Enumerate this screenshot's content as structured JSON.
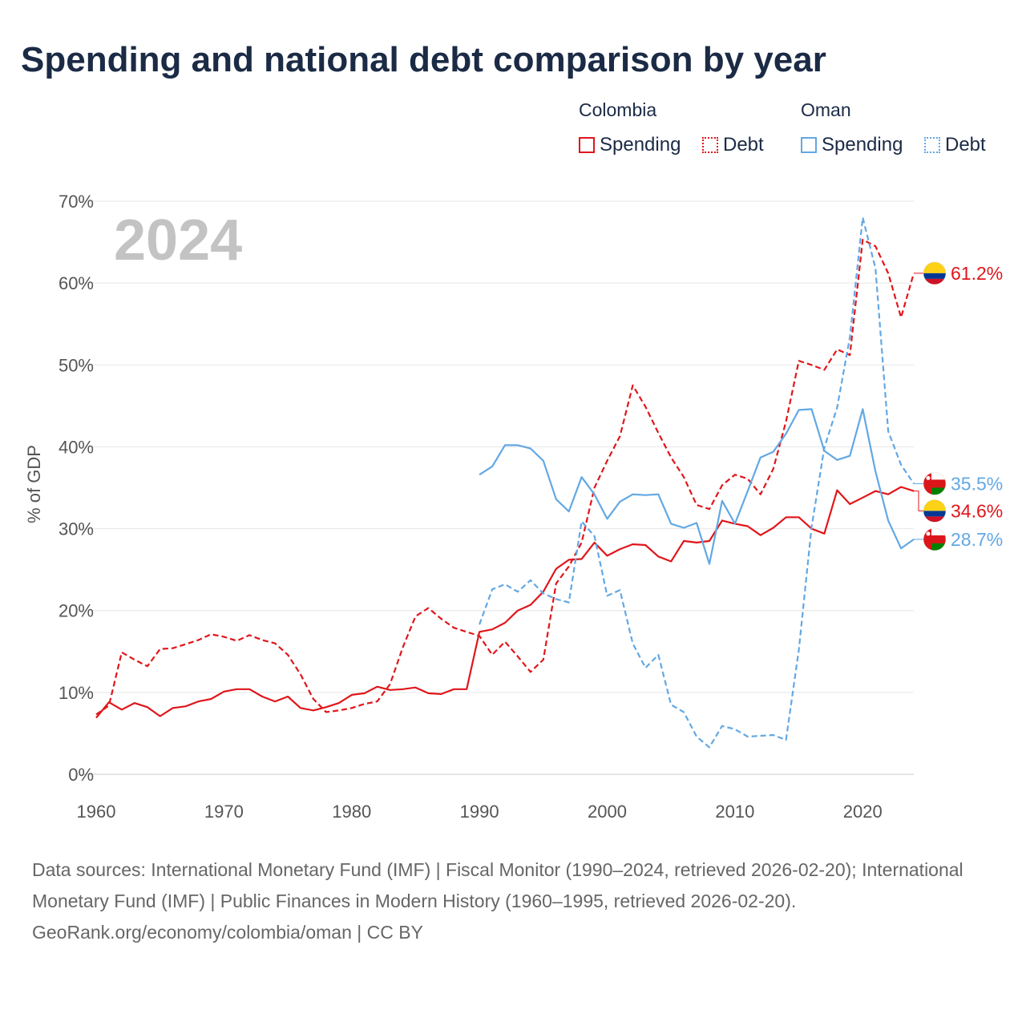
{
  "title": "Spending and national debt comparison by year",
  "legend": {
    "countries": [
      {
        "name": "Colombia",
        "color": "#e0161b",
        "items": [
          {
            "label": "Spending",
            "style": "solid"
          },
          {
            "label": "Debt",
            "style": "dotted"
          }
        ]
      },
      {
        "name": "Oman",
        "color": "#62a8e4",
        "items": [
          {
            "label": "Spending",
            "style": "solid"
          },
          {
            "label": "Debt",
            "style": "dotted"
          }
        ]
      }
    ]
  },
  "chart_data": {
    "type": "line",
    "year_label": "2024",
    "ylabel": "% of GDP",
    "xlim": [
      1960,
      2024
    ],
    "ylim": [
      0,
      70
    ],
    "x_ticks": [
      "1960",
      "1970",
      "1980",
      "1990",
      "2000",
      "2010",
      "2020"
    ],
    "y_ticks": [
      "0%",
      "10%",
      "20%",
      "30%",
      "40%",
      "50%",
      "60%",
      "70%"
    ],
    "grid": true,
    "series": [
      {
        "name": "Colombia Spending",
        "country": "Colombia",
        "style": "solid",
        "color": "#e0161b",
        "end_label": "34.6%",
        "flag": "colombia",
        "x": [
          1960,
          1961,
          1962,
          1963,
          1964,
          1965,
          1966,
          1967,
          1968,
          1969,
          1970,
          1971,
          1972,
          1973,
          1974,
          1975,
          1976,
          1977,
          1978,
          1979,
          1980,
          1981,
          1982,
          1983,
          1984,
          1985,
          1986,
          1987,
          1988,
          1989,
          1990,
          1991,
          1992,
          1993,
          1994,
          1995,
          1996,
          1997,
          1998,
          1999,
          2000,
          2001,
          2002,
          2003,
          2004,
          2005,
          2006,
          2007,
          2008,
          2009,
          2010,
          2011,
          2012,
          2013,
          2014,
          2015,
          2016,
          2017,
          2018,
          2019,
          2020,
          2021,
          2022,
          2023,
          2024
        ],
        "y": [
          6.9,
          8.8,
          7.9,
          8.7,
          8.2,
          7.1,
          8.1,
          8.3,
          8.9,
          9.2,
          10.1,
          10.4,
          10.4,
          9.5,
          8.9,
          9.5,
          8.1,
          7.8,
          8.2,
          8.7,
          9.7,
          9.9,
          10.7,
          10.3,
          10.4,
          10.6,
          9.9,
          9.8,
          10.4,
          10.4,
          17.4,
          17.7,
          18.5,
          20.0,
          20.7,
          22.3,
          25.1,
          26.2,
          26.3,
          28.3,
          26.7,
          27.5,
          28.1,
          28.0,
          26.6,
          26.0,
          28.5,
          28.3,
          28.5,
          31.0,
          30.6,
          30.3,
          29.2,
          30.1,
          31.4,
          31.4,
          30.0,
          29.4,
          34.7,
          33.0,
          33.8,
          34.6,
          34.2,
          35.1,
          34.6
        ]
      },
      {
        "name": "Colombia Debt",
        "country": "Colombia",
        "style": "dashed",
        "color": "#e0161b",
        "end_label": "61.2%",
        "flag": "colombia",
        "x": [
          1960,
          1961,
          1962,
          1963,
          1964,
          1965,
          1966,
          1967,
          1968,
          1969,
          1970,
          1971,
          1972,
          1973,
          1974,
          1975,
          1976,
          1977,
          1978,
          1979,
          1980,
          1981,
          1982,
          1983,
          1984,
          1985,
          1986,
          1987,
          1988,
          1989,
          1990,
          1991,
          1992,
          1993,
          1994,
          1995,
          1996,
          1997,
          1998,
          1999,
          2000,
          2001,
          2002,
          2003,
          2004,
          2005,
          2006,
          2007,
          2008,
          2009,
          2010,
          2011,
          2012,
          2013,
          2014,
          2015,
          2016,
          2017,
          2018,
          2019,
          2020,
          2021,
          2022,
          2023,
          2024
        ],
        "y": [
          7.3,
          8.4,
          14.9,
          14.0,
          13.2,
          15.3,
          15.4,
          15.9,
          16.4,
          17.1,
          16.8,
          16.3,
          17.0,
          16.4,
          16.0,
          14.6,
          12.2,
          9.2,
          7.6,
          7.8,
          8.1,
          8.6,
          8.9,
          11.0,
          15.5,
          19.3,
          20.3,
          19.0,
          17.9,
          17.4,
          16.9,
          14.6,
          16.2,
          14.4,
          12.5,
          14.0,
          23.3,
          25.4,
          28.3,
          35.0,
          38.3,
          41.3,
          47.5,
          44.9,
          41.7,
          38.7,
          36.3,
          32.9,
          32.4,
          35.3,
          36.6,
          36.1,
          34.2,
          37.3,
          43.1,
          50.5,
          50.0,
          49.4,
          51.9,
          51.2,
          65.3,
          64.5,
          61.2,
          55.8,
          61.2
        ]
      },
      {
        "name": "Oman Spending",
        "country": "Oman",
        "style": "solid",
        "color": "#62a8e4",
        "end_label": "28.7%",
        "flag": "oman",
        "x": [
          1990,
          1991,
          1992,
          1993,
          1994,
          1995,
          1996,
          1997,
          1998,
          1999,
          2000,
          2001,
          2002,
          2003,
          2004,
          2005,
          2006,
          2007,
          2008,
          2009,
          2010,
          2011,
          2012,
          2013,
          2014,
          2015,
          2016,
          2017,
          2018,
          2019,
          2020,
          2021,
          2022,
          2023,
          2024
        ],
        "y": [
          36.6,
          37.6,
          40.2,
          40.2,
          39.8,
          38.3,
          33.6,
          32.1,
          36.3,
          34.2,
          31.2,
          33.3,
          34.2,
          34.1,
          34.2,
          30.6,
          30.1,
          30.7,
          25.7,
          33.4,
          30.6,
          34.6,
          38.7,
          39.4,
          41.6,
          44.5,
          44.6,
          39.5,
          38.4,
          38.9,
          44.6,
          37.0,
          31.0,
          27.6,
          28.7
        ]
      },
      {
        "name": "Oman Debt",
        "country": "Oman",
        "style": "dashed",
        "color": "#62a8e4",
        "end_label": "35.5%",
        "flag": "oman",
        "x": [
          1990,
          1991,
          1992,
          1993,
          1994,
          1995,
          1996,
          1997,
          1998,
          1999,
          2000,
          2001,
          2002,
          2003,
          2004,
          2005,
          2006,
          2007,
          2008,
          2009,
          2010,
          2011,
          2012,
          2013,
          2014,
          2015,
          2016,
          2017,
          2018,
          2019,
          2020,
          2021,
          2022,
          2023,
          2024
        ],
        "y": [
          18.3,
          22.6,
          23.2,
          22.3,
          23.7,
          22.1,
          21.4,
          21.0,
          30.9,
          29.1,
          21.8,
          22.5,
          16.0,
          13.0,
          14.6,
          8.5,
          7.6,
          4.6,
          3.3,
          5.9,
          5.5,
          4.6,
          4.7,
          4.8,
          4.2,
          15.2,
          30.2,
          39.9,
          44.8,
          53.4,
          68.0,
          61.8,
          41.9,
          37.8,
          35.5
        ]
      }
    ]
  },
  "footer": {
    "sources": "Data sources: International Monetary Fund (IMF) | Fiscal Monitor (1990–2024, retrieved 2026-02-20); International Monetary Fund (IMF) | Public Finances in Modern History (1960–1995, retrieved 2026-02-20).",
    "credit": "GeoRank.org/economy/colombia/oman | CC BY"
  }
}
